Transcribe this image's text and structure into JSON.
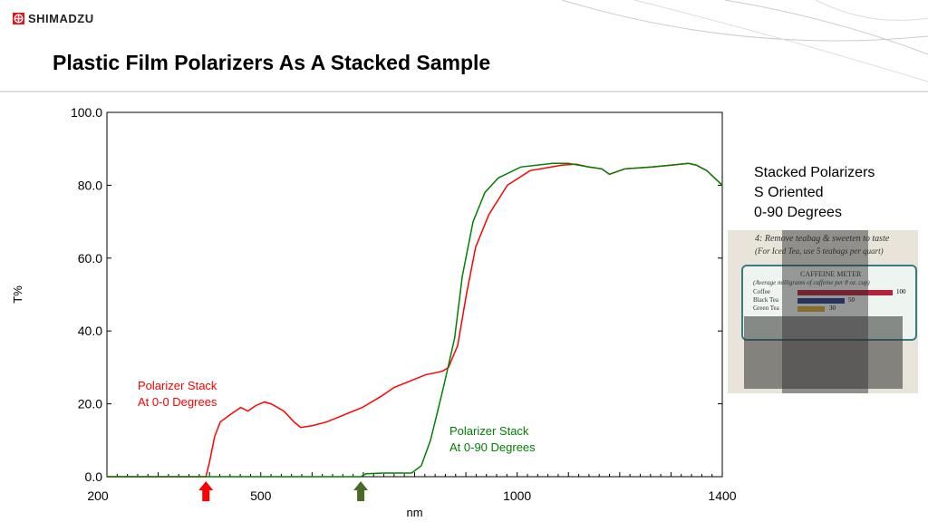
{
  "brand": "SHIMADZU",
  "title": "Plastic Film Polarizers As A Stacked Sample",
  "side_text": [
    "Stacked Polarizers",
    "S Oriented",
    "0-90 Degrees"
  ],
  "photo_text": {
    "line1": "4: Remove teabag & sweeten to taste",
    "line2": "(For Iced Tea, use 5 teabags per quart)",
    "meter": "CAFFEINE METER",
    "sub": "(Average milligrams of caffeine per 8 oz. cup)",
    "rows": [
      {
        "label": "Coffee",
        "value": "100",
        "color": "#b4233a"
      },
      {
        "label": "Black Tea",
        "value": "50",
        "color": "#1f3f8f"
      },
      {
        "label": "Green Tea",
        "value": "30",
        "color": "#d8a030"
      }
    ]
  },
  "chart_data": {
    "type": "line",
    "xlabel": "nm",
    "ylabel": "T%",
    "xlim": [
      200,
      1400
    ],
    "ylim": [
      0,
      100
    ],
    "xticks": [
      "200",
      "500",
      "1000",
      "1400"
    ],
    "xtick_values": [
      200,
      500,
      1000,
      1400
    ],
    "yticks": [
      "0.0",
      "20.0",
      "40.0",
      "60.0",
      "80.0",
      "100.0"
    ],
    "ytick_values": [
      0,
      20,
      40,
      60,
      80,
      100
    ],
    "series": [
      {
        "name": "Polarizer Stack At 0-0 Degrees",
        "label_lines": [
          "Polarizer Stack",
          "At 0-0 Degrees"
        ],
        "color": "#ff0000",
        "x": [
          200,
          393,
          400,
          410,
          421,
          440,
          461,
          475,
          490,
          507,
          520,
          545,
          565,
          578,
          600,
          628,
          663,
          698,
          734,
          760,
          787,
          822,
          840,
          855,
          866,
          884,
          901,
          919,
          945,
          981,
          1025,
          1087,
          1115,
          1140,
          1165,
          1180,
          1210,
          1263,
          1300,
          1334,
          1350,
          1370,
          1385,
          1400
        ],
        "y": [
          0,
          0,
          4,
          11,
          15,
          17,
          19,
          18,
          19.5,
          20.5,
          20,
          18,
          15,
          13.5,
          14,
          15,
          17,
          19,
          22,
          24.5,
          26,
          28,
          28.5,
          29,
          30,
          36,
          50,
          63,
          72,
          80,
          84,
          85.5,
          85.8,
          85,
          84.5,
          83,
          84.5,
          85,
          85.5,
          86,
          85.5,
          84,
          82,
          80
        ]
      },
      {
        "name": "Polarizer Stack At 0-90 Degrees",
        "label_lines": [
          "Polarizer Stack",
          "At 0-90 Degrees"
        ],
        "color": "#008000",
        "x": [
          200,
          695,
          705,
          740,
          794,
          813,
          831,
          845,
          857,
          878,
          893,
          914,
          937,
          963,
          1007,
          1069,
          1100,
          1140,
          1165,
          1180,
          1210,
          1263,
          1300,
          1334,
          1350,
          1370,
          1385,
          1400
        ],
        "y": [
          0,
          0,
          0.8,
          1,
          1,
          3,
          10,
          18,
          25,
          38,
          55,
          70,
          78,
          82,
          85,
          86,
          86,
          85,
          84.5,
          83,
          84.5,
          85,
          85.5,
          86,
          85.5,
          84,
          82,
          80
        ]
      }
    ],
    "markers": [
      {
        "x": 393,
        "color": "#ff0000"
      },
      {
        "x": 695,
        "color": "#4a6a2a"
      }
    ]
  }
}
